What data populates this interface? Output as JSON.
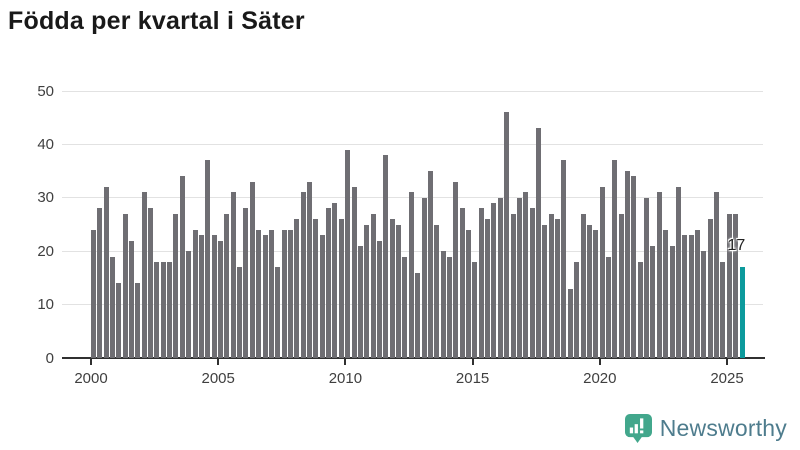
{
  "title": "Födda per kvartal i Säter",
  "branding": {
    "logo_text": "Newsworthy",
    "logo_bubble_color": "#42a78c",
    "logo_text_color": "#4e7c8d"
  },
  "chart_data": {
    "type": "bar",
    "title": "Födda per kvartal i Säter",
    "x_unit": "quarter",
    "x_range": [
      "2000 Q1",
      "2025 Q3"
    ],
    "values": [
      24,
      28,
      32,
      19,
      14,
      27,
      22,
      14,
      31,
      28,
      18,
      18,
      18,
      27,
      34,
      20,
      24,
      23,
      37,
      23,
      22,
      27,
      31,
      17,
      28,
      33,
      24,
      23,
      24,
      17,
      24,
      24,
      26,
      31,
      33,
      26,
      23,
      28,
      29,
      26,
      39,
      32,
      21,
      25,
      27,
      22,
      38,
      26,
      25,
      19,
      31,
      16,
      30,
      35,
      25,
      20,
      19,
      33,
      28,
      24,
      18,
      28,
      26,
      29,
      30,
      46,
      27,
      30,
      31,
      28,
      43,
      25,
      27,
      26,
      37,
      13,
      18,
      27,
      25,
      24,
      32,
      19,
      37,
      27,
      35,
      34,
      18,
      30,
      21,
      31,
      24,
      21,
      32,
      23,
      23,
      24,
      20,
      26,
      31,
      18,
      27,
      27,
      17
    ],
    "highlight_index": 102,
    "highlight_value_label": "17",
    "x_tick_labels": [
      "2000",
      "2005",
      "2010",
      "2015",
      "2020",
      "2025"
    ],
    "x_tick_bar_indices": [
      0,
      20,
      40,
      60,
      80,
      100
    ],
    "y_tick_labels": [
      "0",
      "10",
      "20",
      "30",
      "40",
      "50"
    ],
    "y_ticks": [
      0,
      10,
      20,
      30,
      40,
      50
    ],
    "ylim": [
      0,
      50
    ],
    "grid": true,
    "legend": "none",
    "bar_color": "#6f6e73",
    "highlight_color": "#0c9a9c",
    "gridline_color": "#e2e2e2",
    "axis_color": "#303030"
  }
}
